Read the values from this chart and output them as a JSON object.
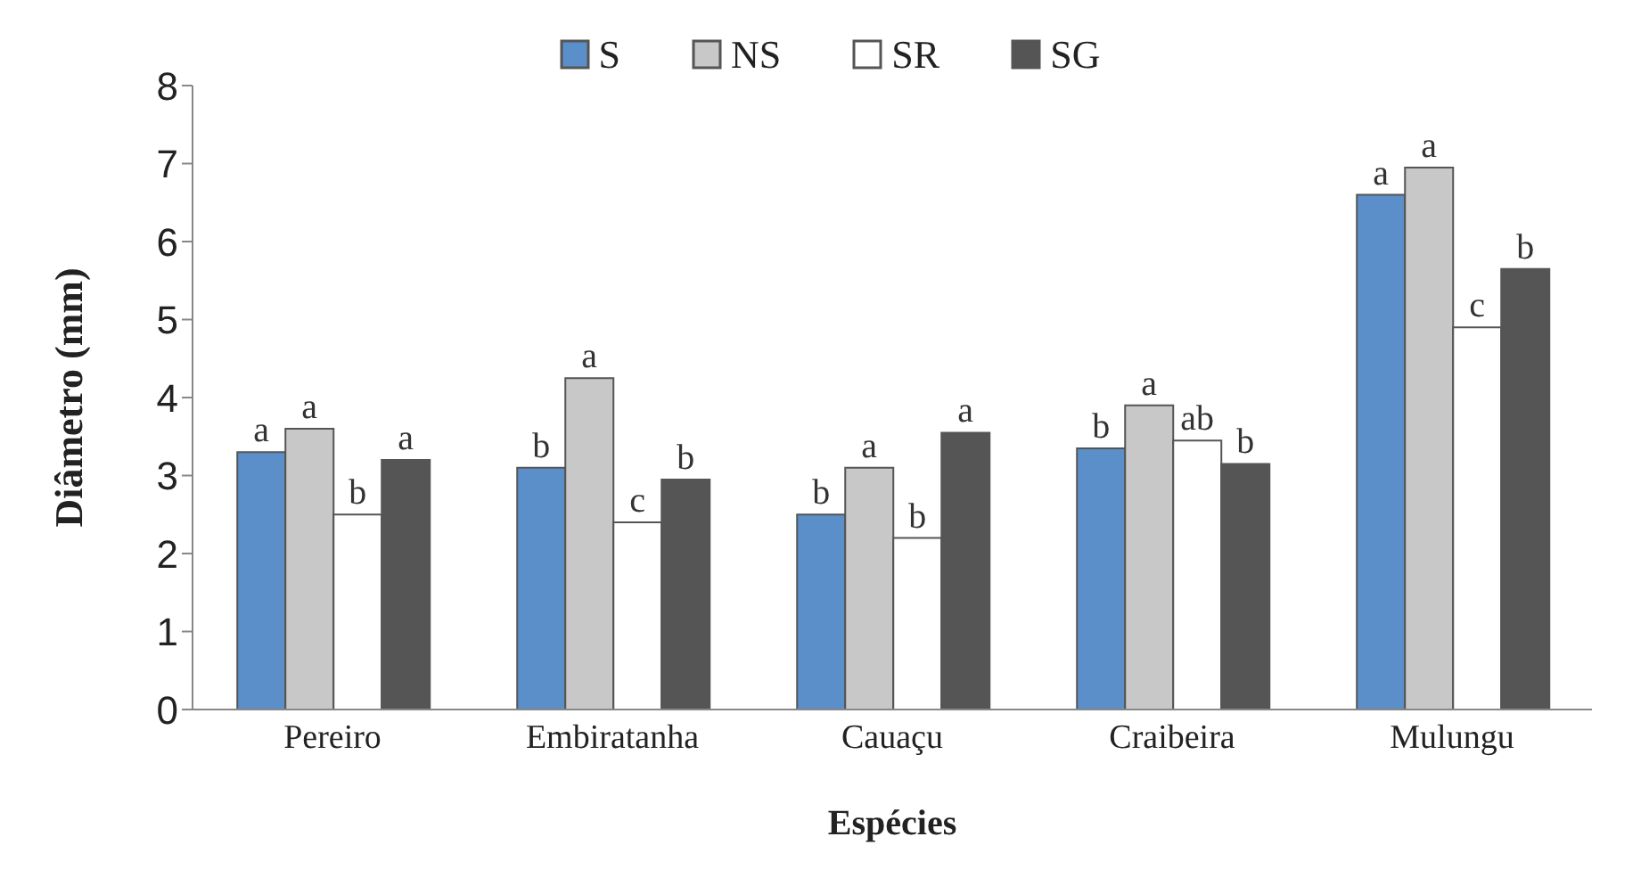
{
  "chart_data": {
    "type": "bar",
    "xlabel": "Espécies",
    "ylabel": "Diâmetro (mm)",
    "categories": [
      "Pereiro",
      "Embiratanha",
      "Cauaçu",
      "Craibeira",
      "Mulungu"
    ],
    "ylim": [
      0,
      8
    ],
    "yticks": [
      0,
      1,
      2,
      3,
      4,
      5,
      6,
      7,
      8
    ],
    "legend": "top",
    "series": [
      {
        "name": "S",
        "color": "#5b8fc9",
        "values": [
          3.3,
          3.1,
          2.5,
          3.35,
          6.6
        ],
        "value_labels": [
          "a",
          "b",
          "b",
          "b",
          "a"
        ]
      },
      {
        "name": "NS",
        "color": "#c8c8c8",
        "values": [
          3.6,
          4.25,
          3.1,
          3.9,
          6.95
        ],
        "value_labels": [
          "a",
          "a",
          "a",
          "a",
          "a"
        ]
      },
      {
        "name": "SR",
        "color": "#ffffff",
        "values": [
          2.5,
          2.4,
          2.2,
          3.45,
          4.9
        ],
        "value_labels": [
          "b",
          "c",
          "b",
          "ab",
          "c"
        ]
      },
      {
        "name": "SG",
        "color": "#555555",
        "values": [
          3.2,
          2.95,
          3.55,
          3.15,
          5.65
        ],
        "value_labels": [
          "a",
          "b",
          "a",
          "b",
          "b"
        ]
      }
    ]
  }
}
